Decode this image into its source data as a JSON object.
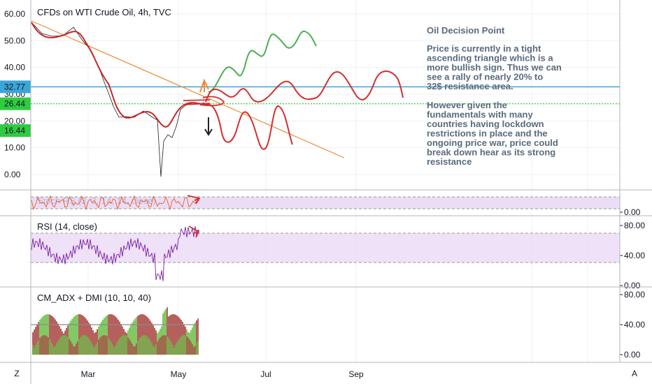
{
  "chart_data": {
    "type": "line",
    "title": "CFDs on WTI Crude Oil, 4h, TVC",
    "price_axis": {
      "ticks": [
        "60.00",
        "50.00",
        "40.00",
        "30.00",
        "20.00",
        "10.00",
        "0.00"
      ],
      "values": [
        60,
        50,
        40,
        30,
        20,
        10,
        0
      ],
      "range": [
        -3,
        63
      ]
    },
    "price_tags": [
      {
        "label": "32.77",
        "value": 32.77,
        "color": "#3aa6d8",
        "line": "solid"
      },
      {
        "label": "26.44",
        "value": 26.44,
        "color": "#2ecc40",
        "line": "dotted"
      },
      {
        "label": "16.44",
        "value": 16.44,
        "color": "#2ecc40",
        "line": "none"
      }
    ],
    "time_axis": {
      "labels": [
        "Mar",
        "May",
        "Jul",
        "Sep"
      ]
    },
    "annotation": {
      "title": "Oil Decision Point",
      "lines": [
        "Price is currently in a tight",
        "ascending triangle which is a",
        "more bullish sign. Thus  we can",
        "see a rally of nearly 20% to",
        "32$ resistance area.",
        "",
        "However given the",
        "fundamentals with many",
        "countries having lockdown",
        "restrictions in place and the",
        "ongoing price war, price could",
        "break down hear as its strong",
        "resistance"
      ]
    },
    "panes": [
      {
        "title": "Stoch RS  (3, 3, 14, 14, close)",
        "ticks": [
          "0.00"
        ]
      },
      {
        "title": "RSI (14, close)",
        "ticks": [
          "80.00",
          "40.00",
          "0.00"
        ]
      },
      {
        "title": "CM_ADX + DMI (10, 10, 40)",
        "ticks": [
          "80.00",
          "40.00",
          "0.00"
        ]
      }
    ],
    "colors": {
      "price": "#c62828",
      "trendline": "#f08a34",
      "bull": "#4caf50",
      "bear": "#d32f2f",
      "rsi": "#7b1fa2",
      "band": "#e7d4f5",
      "adx_red": "#a94442",
      "adx_green": "#6cc04a"
    }
  },
  "footer": {
    "left_button": "Z",
    "right_button": "A"
  }
}
